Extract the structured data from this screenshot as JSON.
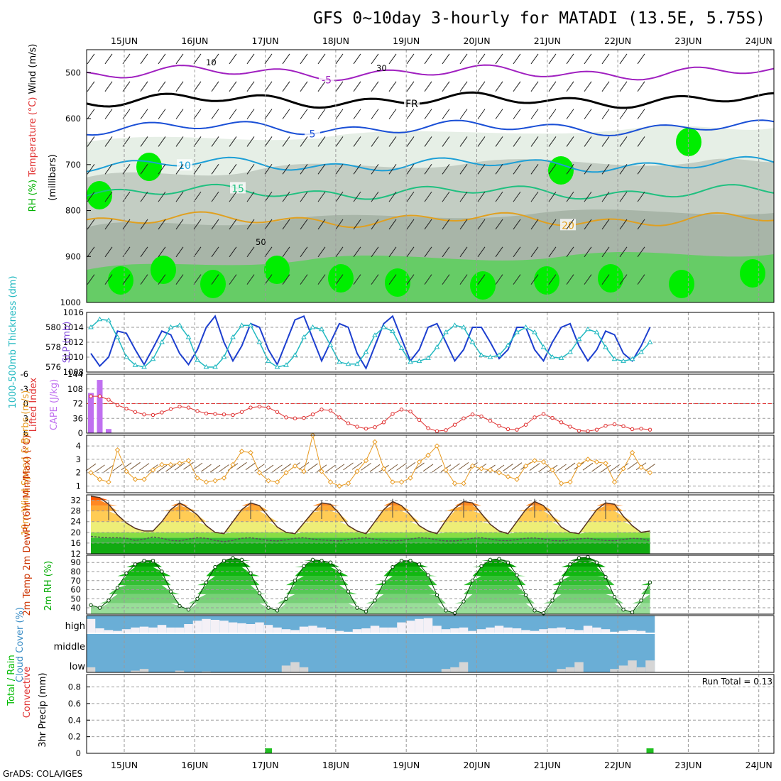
{
  "title": "GFS 0~10day 3-hourly for MATADI (13.5E, 5.75S)",
  "footer": "GrADS: COLA/IGES",
  "run_total": "Run Total = 0.13",
  "colors": {
    "rh_green": "#00ee00",
    "rh_mid": "#66cc66",
    "rh_grey": "#a8b5a8",
    "temp_blue": "#1a4fd6",
    "temp_teal": "#1d9fd6",
    "temp_green": "#20c080",
    "temp_orange": "#e0a020",
    "temp_violet": "#a020c0",
    "slp_line": "#1d3fcf",
    "thk_line": "#20b8c0",
    "li_line": "#e03030",
    "cape_bar": "#c070f0",
    "wind_line": "#e89a20",
    "cloud_blue": "#6aaed6",
    "precip_green": "#20c020"
  },
  "chart_data": [
    {
      "panel": "upper-air",
      "type": "heatmap",
      "ylabel_parts": [
        "RH (%)",
        "Temperature (°C)",
        "Wind (m/s)"
      ],
      "ylabel2": "(millibars)",
      "x": [
        "15JUN",
        "16JUN",
        "17JUN",
        "18JUN",
        "19JUN",
        "20JUN",
        "21JUN",
        "22JUN",
        "23JUN",
        "24JUN"
      ],
      "yticks": [
        "500",
        "600",
        "700",
        "800",
        "900",
        "1000"
      ],
      "ylim": [
        1000,
        450
      ],
      "temperature_contours": [
        {
          "label": "-5",
          "level_mb": 500
        },
        {
          "label": "FR",
          "level_mb": 560
        },
        {
          "label": "5",
          "level_mb": 620
        },
        {
          "label": "10",
          "level_mb": 700
        },
        {
          "label": "15",
          "level_mb": 760
        },
        {
          "label": "20",
          "level_mb": 820
        }
      ],
      "rh_labels": [
        "10",
        "30",
        "50"
      ]
    },
    {
      "panel": "slp-thickness",
      "type": "line",
      "ylabel_left": "1000-500mb Thickness (dm)",
      "ylabel_right": "SLP (mb)",
      "yticks_left": [
        "576",
        "578",
        "580"
      ],
      "yticks_right": [
        "1008",
        "1010",
        "1012",
        "1014",
        "1016"
      ],
      "ylim_right": [
        1008,
        1016
      ],
      "ylim_left": [
        575.5,
        581.5
      ],
      "series": [
        {
          "name": "SLP (mb)",
          "values": [
            1010.5,
            1008.8,
            1010.0,
            1013.5,
            1013.2,
            1011.0,
            1009.0,
            1011.2,
            1013.5,
            1013.0,
            1010.5,
            1009.0,
            1011.0,
            1014.0,
            1015.5,
            1012.0,
            1009.5,
            1011.5,
            1014.5,
            1014.0,
            1011.0,
            1009.0,
            1012.0,
            1015.0,
            1015.5,
            1012.5,
            1009.5,
            1012.0,
            1014.5,
            1014.0,
            1010.5,
            1008.5,
            1011.5,
            1014.5,
            1015.5,
            1012.5,
            1009.5,
            1011.0,
            1014.0,
            1014.5,
            1012.0,
            1009.5,
            1011.0,
            1014.0,
            1014.0,
            1012.0,
            1009.8,
            1011.0,
            1014.0,
            1014.0,
            1011.0,
            1009.5,
            1012.0,
            1014.0,
            1014.5,
            1011.5,
            1009.5,
            1011.0,
            1013.5,
            1013.0,
            1010.5,
            1009.5,
            1011.5,
            1014.0
          ]
        },
        {
          "name": "1000-500mb Thickness (dm)",
          "values": [
            580.0,
            580.8,
            580.7,
            579.0,
            577.0,
            576.2,
            576.0,
            576.8,
            578.5,
            580.0,
            580.2,
            579.0,
            576.7,
            576.0,
            576.0,
            577.0,
            579.0,
            580.2,
            580.2,
            578.5,
            576.6,
            576.0,
            576.2,
            577.2,
            579.0,
            580.0,
            579.8,
            578.2,
            576.5,
            576.3,
            576.3,
            577.5,
            579.2,
            580.0,
            579.6,
            577.9,
            576.5,
            576.6,
            576.9,
            578.0,
            579.5,
            580.2,
            580.0,
            578.5,
            577.2,
            577.0,
            577.2,
            578.2,
            579.5,
            580.0,
            579.5,
            578.0,
            577.0,
            576.9,
            577.5,
            578.8,
            579.8,
            579.5,
            578.0,
            576.8,
            576.6,
            576.8,
            577.5,
            578.5
          ]
        }
      ]
    },
    {
      "panel": "lifted-index-cape",
      "type": "line",
      "ylabel_left": "Lifted Index",
      "ylabel_right": "CAPE (J/kg)",
      "yticks_left": [
        "-6",
        "-3",
        "0",
        "3",
        "6"
      ],
      "yticks_right": [
        "0",
        "36",
        "72",
        "108",
        "144"
      ],
      "ylim_left": [
        6,
        -6
      ],
      "ylim_right": [
        0,
        144
      ],
      "reference_line": {
        "value": 0,
        "color": "red"
      },
      "series": [
        {
          "name": "Lifted Index",
          "values": [
            -1.5,
            -1.5,
            -0.8,
            0.3,
            1.0,
            1.7,
            2.2,
            2.3,
            1.8,
            1.1,
            0.6,
            0.8,
            1.5,
            2.0,
            2.1,
            2.2,
            2.3,
            1.7,
            0.8,
            0.6,
            0.8,
            1.7,
            2.8,
            3.0,
            2.9,
            2.2,
            1.2,
            1.4,
            2.8,
            4.0,
            4.7,
            5.1,
            4.8,
            3.8,
            2.1,
            1.2,
            1.6,
            3.3,
            5.0,
            5.6,
            5.4,
            4.3,
            3.0,
            2.2,
            2.6,
            3.5,
            4.5,
            5.2,
            5.3,
            4.3,
            2.8,
            2.1,
            2.9,
            3.8,
            4.7,
            5.5,
            5.6,
            5.3,
            4.5,
            4.2,
            4.6,
            5.2,
            5.1,
            5.3
          ]
        },
        {
          "name": "CAPE (J/kg)",
          "values": [
            98,
            130,
            10,
            0,
            0,
            0,
            0,
            0,
            0,
            0,
            0,
            0,
            0,
            0,
            0,
            0,
            0,
            0,
            0,
            0,
            0,
            0,
            0,
            0,
            0,
            0,
            0,
            0,
            0,
            0,
            0,
            0,
            0,
            0,
            0,
            0,
            0,
            0,
            0,
            0,
            0,
            0,
            0,
            0,
            0,
            0,
            0,
            0,
            0,
            0,
            0,
            0,
            0,
            0,
            0,
            0,
            0,
            0,
            0,
            0,
            0,
            0,
            0,
            0
          ]
        }
      ]
    },
    {
      "panel": "10m-wind",
      "type": "line",
      "ylabel": "10m Wind Speed & Barbs (m/s)",
      "yticks": [
        "1",
        "2",
        "3",
        "4"
      ],
      "ylim": [
        0.5,
        4.8
      ],
      "series": [
        {
          "name": "10m Wind Speed (m/s)",
          "values": [
            2.0,
            1.5,
            1.3,
            3.7,
            2.1,
            1.5,
            1.5,
            2.2,
            2.6,
            2.6,
            2.7,
            2.9,
            1.6,
            1.3,
            1.4,
            1.6,
            2.6,
            3.6,
            3.5,
            2.0,
            1.4,
            1.3,
            2.0,
            2.5,
            2.1,
            4.8,
            2.1,
            1.3,
            1.0,
            1.2,
            2.1,
            2.9,
            4.3,
            2.3,
            1.3,
            1.3,
            1.6,
            2.8,
            3.3,
            4.0,
            2.2,
            1.2,
            1.2,
            2.5,
            2.3,
            2.2,
            2.0,
            1.7,
            1.5,
            2.5,
            2.9,
            2.8,
            2.2,
            1.2,
            1.3,
            2.6,
            3.0,
            2.8,
            2.7,
            1.3,
            2.3,
            3.5,
            2.4,
            2.0
          ]
        }
      ]
    },
    {
      "panel": "2m-temp",
      "type": "area",
      "ylabel": "2m Temp 2m DewPt (6hr Min/Max) (°C)",
      "yticks": [
        "12",
        "16",
        "20",
        "24",
        "28",
        "32"
      ],
      "ylim": [
        12,
        34
      ],
      "series": [
        {
          "name": "2m Temp",
          "values": [
            33.5,
            33.0,
            30.5,
            26.5,
            23.5,
            21.5,
            20.5,
            20.5,
            24.0,
            28.5,
            31.0,
            29.0,
            26.5,
            22.5,
            20.0,
            19.5,
            24.0,
            28.5,
            31.0,
            30.0,
            26.0,
            22.0,
            20.0,
            19.5,
            23.5,
            27.5,
            31.0,
            30.5,
            27.0,
            22.5,
            20.5,
            19.5,
            24.0,
            28.5,
            31.5,
            30.0,
            26.5,
            22.5,
            20.5,
            19.5,
            24.5,
            29.0,
            31.5,
            31.0,
            27.0,
            23.0,
            20.5,
            19.5,
            24.0,
            28.5,
            31.5,
            30.0,
            26.0,
            22.0,
            20.0,
            19.5,
            24.0,
            28.5,
            31.0,
            30.5,
            26.0,
            22.5,
            20.0,
            20.5
          ]
        },
        {
          "name": "2m DewPt",
          "values": [
            18.5,
            18.2,
            18.0,
            18.0,
            17.8,
            17.0,
            17.5,
            18.3,
            17.8,
            17.0,
            16.8,
            17.5,
            18.0,
            17.8,
            17.0,
            16.5,
            17.0,
            17.8,
            18.0,
            17.5,
            17.0,
            16.8,
            17.2,
            17.8,
            18.0,
            17.5,
            17.2,
            17.0,
            16.8,
            17.3,
            17.8,
            18.0,
            17.4,
            17.0,
            16.8,
            17.0,
            17.5,
            18.0,
            17.8,
            17.2,
            16.8,
            16.8,
            17.2,
            17.8,
            18.0,
            17.5,
            17.0,
            16.9,
            17.3,
            17.8,
            17.9,
            17.5,
            17.0,
            16.8,
            17.2,
            17.6,
            17.8,
            17.3,
            17.0,
            16.9,
            17.3,
            17.8,
            17.6,
            17.0
          ]
        }
      ]
    },
    {
      "panel": "2m-rh",
      "type": "area",
      "ylabel": "2m RH (%)",
      "yticks": [
        "40",
        "50",
        "60",
        "70",
        "80",
        "90"
      ],
      "ylim": [
        33,
        98
      ],
      "series": [
        {
          "name": "2m RH (%)",
          "values": [
            43,
            40,
            48,
            62,
            78,
            88,
            92,
            92,
            80,
            58,
            42,
            38,
            50,
            68,
            85,
            92,
            95,
            93,
            78,
            56,
            40,
            37,
            50,
            70,
            86,
            93,
            92,
            90,
            80,
            58,
            40,
            36,
            48,
            68,
            85,
            92,
            92,
            88,
            76,
            54,
            37,
            34,
            47,
            70,
            86,
            93,
            94,
            90,
            76,
            54,
            37,
            34,
            48,
            70,
            88,
            95,
            96,
            90,
            74,
            52,
            38,
            35,
            48,
            68
          ]
        }
      ]
    },
    {
      "panel": "cloud-cover",
      "type": "bar",
      "ylabel": "Cloud Cover (%)",
      "layers": [
        "high",
        "middle",
        "low"
      ],
      "series": [
        {
          "name": "high",
          "values": [
            80,
            25,
            15,
            10,
            20,
            30,
            35,
            30,
            45,
            30,
            30,
            50,
            70,
            80,
            75,
            70,
            60,
            55,
            50,
            60,
            45,
            30,
            20,
            15,
            35,
            40,
            30,
            20,
            10,
            5,
            20,
            25,
            40,
            30,
            30,
            60,
            70,
            80,
            85,
            40,
            20,
            25,
            30,
            10,
            20,
            30,
            40,
            30,
            25,
            15,
            10,
            20,
            25,
            30,
            20,
            15,
            40,
            30,
            20,
            5,
            10,
            15,
            10,
            0
          ]
        },
        {
          "name": "middle",
          "values": [
            100,
            100,
            100,
            100,
            100,
            100,
            100,
            100,
            100,
            100,
            100,
            100,
            100,
            100,
            100,
            100,
            100,
            100,
            100,
            100,
            100,
            100,
            100,
            100,
            100,
            100,
            100,
            100,
            100,
            100,
            100,
            100,
            100,
            100,
            100,
            100,
            100,
            100,
            100,
            100,
            100,
            100,
            100,
            100,
            100,
            100,
            100,
            100,
            100,
            100,
            100,
            100,
            100,
            100,
            100,
            100,
            100,
            100,
            100,
            100,
            100,
            100,
            100,
            100
          ]
        },
        {
          "name": "low",
          "values": [
            30,
            0,
            0,
            0,
            0,
            10,
            20,
            0,
            0,
            0,
            10,
            0,
            0,
            5,
            0,
            0,
            0,
            0,
            0,
            0,
            0,
            0,
            40,
            60,
            30,
            0,
            0,
            0,
            0,
            0,
            0,
            0,
            0,
            0,
            0,
            0,
            0,
            0,
            0,
            0,
            20,
            30,
            60,
            0,
            0,
            0,
            0,
            0,
            0,
            0,
            0,
            0,
            0,
            20,
            30,
            60,
            0,
            0,
            0,
            20,
            40,
            70,
            30,
            70
          ]
        }
      ]
    },
    {
      "panel": "precip",
      "type": "bar",
      "ylabel_parts": [
        "Total / Rain",
        "Convective",
        "3hr Precip (mm)"
      ],
      "yticks": [
        "0",
        "0.2",
        "0.4",
        "0.6",
        "0.8"
      ],
      "ylim": [
        0,
        0.95
      ],
      "series": [
        {
          "name": "Total / Rain",
          "values": [
            0,
            0,
            0,
            0,
            0,
            0,
            0,
            0,
            0,
            0,
            0,
            0,
            0,
            0,
            0,
            0,
            0,
            0,
            0,
            0,
            0.06,
            0,
            0,
            0,
            0,
            0,
            0,
            0,
            0,
            0,
            0,
            0,
            0,
            0,
            0,
            0,
            0,
            0,
            0,
            0,
            0,
            0,
            0,
            0,
            0,
            0,
            0,
            0,
            0,
            0,
            0,
            0,
            0,
            0,
            0,
            0,
            0,
            0,
            0,
            0,
            0,
            0,
            0,
            0.06
          ]
        }
      ]
    }
  ]
}
